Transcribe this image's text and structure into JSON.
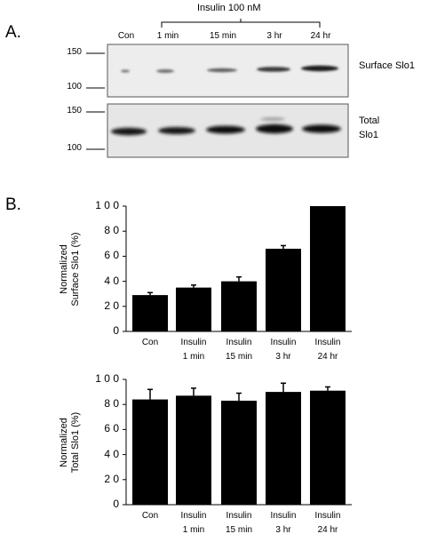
{
  "panel_a": {
    "letter": "A.",
    "treatment_header": "Insulin 100 nM",
    "lanes": [
      "Con",
      "1 min",
      "15 min",
      "3 hr",
      "24 hr"
    ],
    "surface_blot": {
      "mw_markers": [
        "150",
        "100"
      ],
      "label": "Surface Slo1"
    },
    "total_blot": {
      "mw_markers": [
        "150",
        "100"
      ],
      "label_lines": [
        "Total",
        "Slo1"
      ]
    }
  },
  "panel_b": {
    "letter": "B."
  },
  "chart_data": [
    {
      "type": "bar",
      "ylabel_lines": [
        "Normalized",
        "Surface Slo1 (%)"
      ],
      "categories": [
        [
          "Con"
        ],
        [
          "Insulin",
          "1 min"
        ],
        [
          "Insulin",
          "15 min"
        ],
        [
          "Insulin",
          "3 hr"
        ],
        [
          "Insulin",
          "24 hr"
        ]
      ],
      "values": [
        29,
        35,
        40,
        66,
        100
      ],
      "errors": [
        2,
        2,
        3.5,
        2.5,
        0
      ],
      "ylim": [
        0,
        100
      ],
      "yticks": [
        "0",
        "2 0",
        "4 0",
        "6 0",
        "8 0",
        "1 0 0"
      ],
      "bar_color": "#000000"
    },
    {
      "type": "bar",
      "ylabel_lines": [
        "Normalized",
        "Total Slo1 (%)"
      ],
      "categories": [
        [
          "Con"
        ],
        [
          "Insulin",
          "1 min"
        ],
        [
          "Insulin",
          "15 min"
        ],
        [
          "Insulin",
          "3 hr"
        ],
        [
          "Insulin",
          "24 hr"
        ]
      ],
      "values": [
        84,
        87,
        83,
        90,
        91
      ],
      "errors": [
        8,
        6,
        6,
        7,
        3
      ],
      "ylim": [
        0,
        100
      ],
      "yticks": [
        "0",
        "2 0",
        "4 0",
        "6 0",
        "8 0",
        "1 0 0"
      ],
      "bar_color": "#000000"
    }
  ]
}
